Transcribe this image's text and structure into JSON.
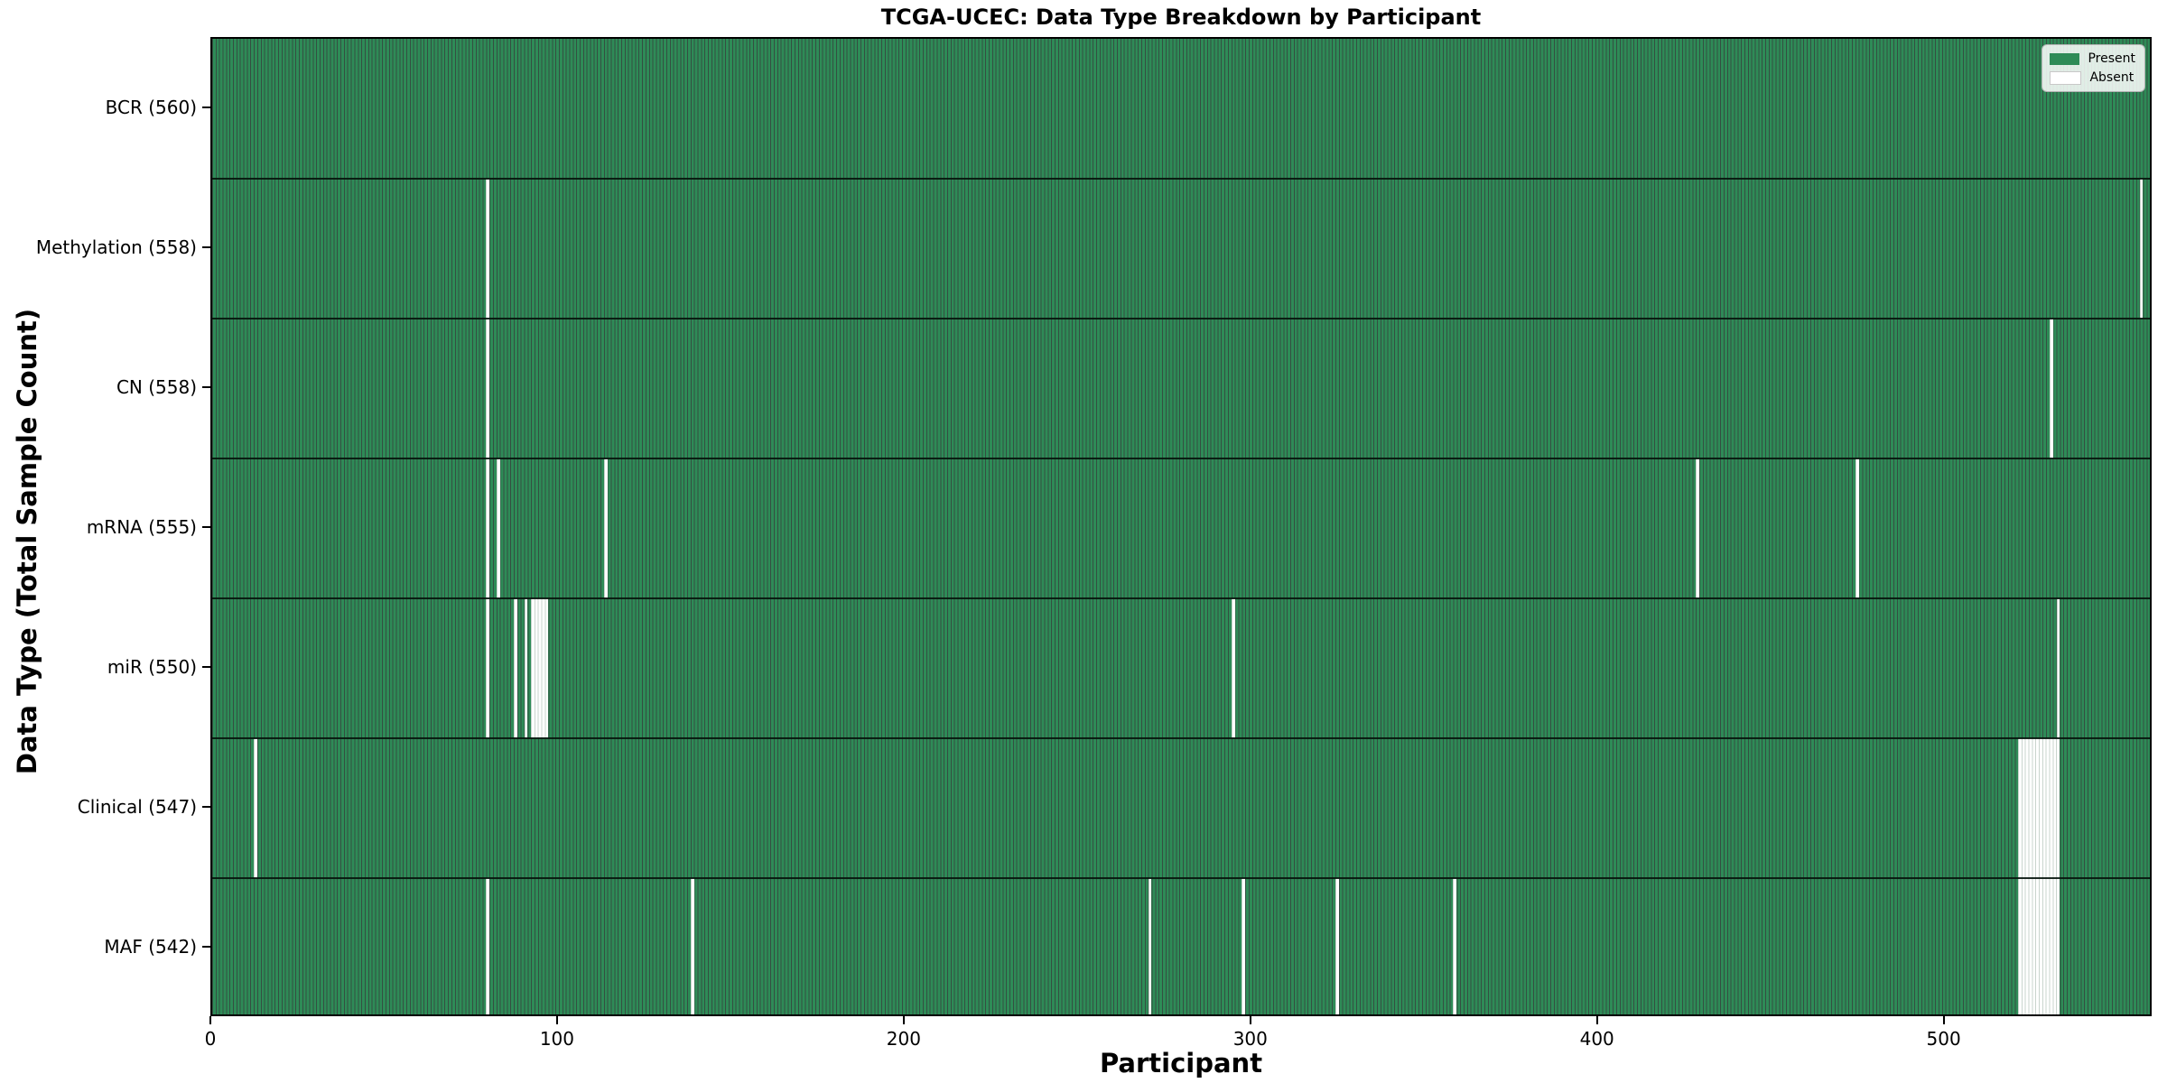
{
  "title": "TCGA-UCEC: Data Type Breakdown by Participant",
  "colors": {
    "present": "#2e8b57",
    "absent": "#ffffff",
    "bar_edge_dark": "#14402a",
    "absent_edge": "#c9d4cd",
    "legend_border": "#b3b3b3",
    "text": "#000000"
  },
  "legend": {
    "items": [
      {
        "label": "Present",
        "color": "#2e8b57",
        "edge": "none"
      },
      {
        "label": "Absent",
        "color": "#ffffff",
        "edge": "#c8c8c8"
      }
    ]
  },
  "chart_data": {
    "type": "heatmap",
    "title": "TCGA-UCEC: Data Type Breakdown by Participant",
    "xlabel": "Participant",
    "ylabel": "Data Type (Total Sample Count)",
    "x_ticks": [
      0,
      100,
      200,
      300,
      400,
      500
    ],
    "x_range": [
      0,
      560
    ],
    "participants_total": 560,
    "legend_entries": [
      "Present",
      "Absent"
    ],
    "legend_position": "upper right",
    "grid": false,
    "rows": [
      {
        "label": "BCR (560)",
        "data_type": "BCR",
        "present_count": 560,
        "absent_participants": []
      },
      {
        "label": "Methylation (558)",
        "data_type": "Methylation",
        "present_count": 558,
        "absent_participants": [
          79,
          556
        ]
      },
      {
        "label": "CN (558)",
        "data_type": "CN",
        "present_count": 558,
        "absent_participants": [
          79,
          530
        ]
      },
      {
        "label": "mRNA (555)",
        "data_type": "mRNA",
        "present_count": 555,
        "absent_participants": [
          79,
          82,
          113,
          428,
          474
        ]
      },
      {
        "label": "miR (550)",
        "data_type": "miR",
        "present_count": 550,
        "absent_participants": [
          79,
          87,
          90,
          92,
          93,
          94,
          95,
          96,
          294,
          532
        ]
      },
      {
        "label": "Clinical (547)",
        "data_type": "Clinical",
        "present_count": 547,
        "absent_participants": [
          12,
          521,
          522,
          523,
          524,
          525,
          526,
          527,
          528,
          529,
          530,
          531,
          532
        ]
      },
      {
        "label": "MAF (542)",
        "data_type": "MAF",
        "present_count": 542,
        "absent_participants": [
          79,
          138,
          270,
          297,
          324,
          358,
          521,
          522,
          523,
          524,
          525,
          526,
          527,
          528,
          529,
          530,
          531,
          532
        ]
      }
    ]
  }
}
